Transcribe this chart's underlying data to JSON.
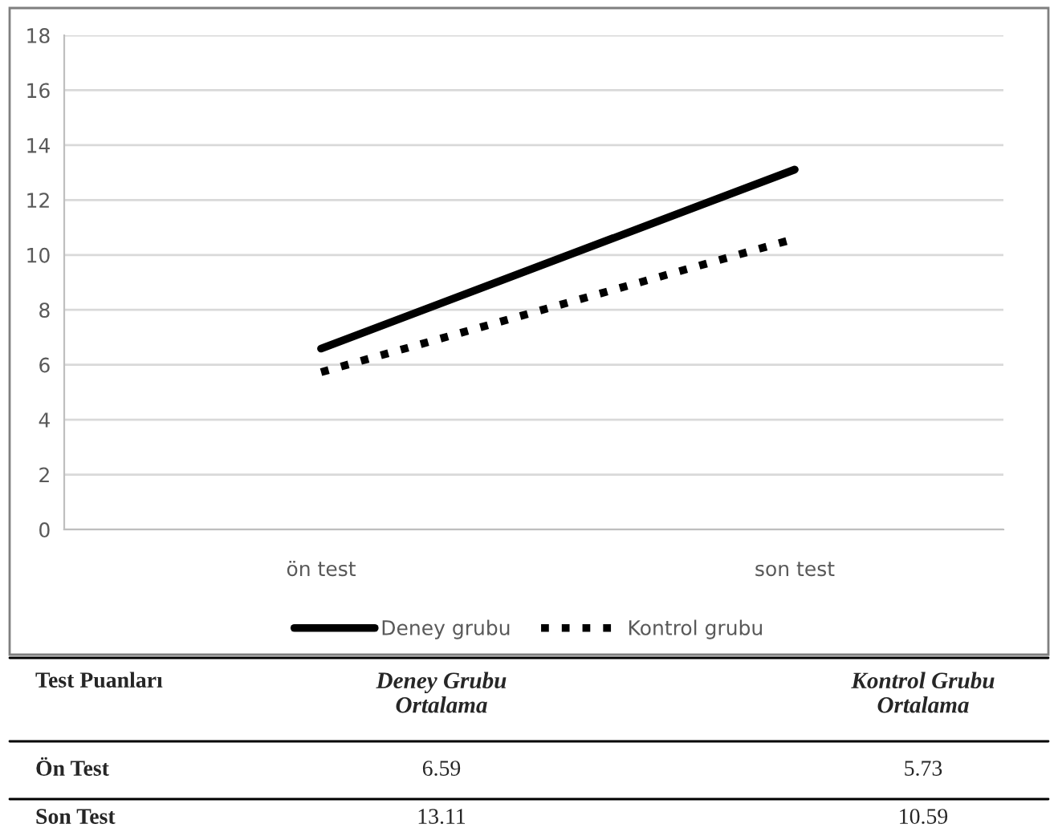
{
  "chart_data": {
    "type": "line",
    "categories": [
      "ön test",
      "son test"
    ],
    "series": [
      {
        "name": "Deney grubu",
        "color": "#000000",
        "values": [
          6.59,
          13.11
        ],
        "line_style": "solid"
      },
      {
        "name": "Kontrol grubu",
        "color": "#000000",
        "values": [
          5.73,
          10.59
        ],
        "line_style": "dotted"
      }
    ],
    "ylim": [
      0,
      18
    ],
    "yticks": [
      0,
      2,
      4,
      6,
      8,
      10,
      12,
      14,
      16,
      18
    ],
    "grid": "y",
    "legend": "bottom",
    "marker": "none",
    "annotations": [
      "Test Puanları",
      "Deney Grubu\nOrtalama",
      "Kontrol Grubu\nOrtalama",
      "Ön Test",
      "6.59",
      "5.73",
      "Son Test",
      "13.11",
      "10.59"
    ]
  }
}
